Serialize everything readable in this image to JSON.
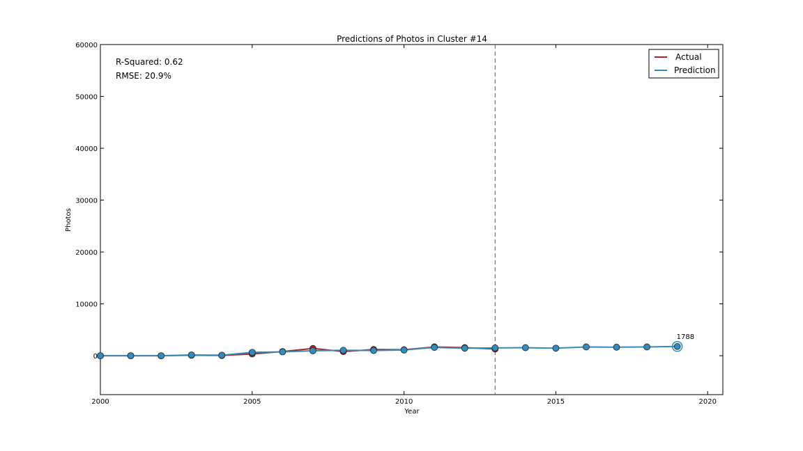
{
  "chart_data": {
    "type": "line",
    "title": "Predictions of Photos in Cluster #14",
    "xlabel": "Year",
    "ylabel": "Photos",
    "xlim": [
      2000,
      2020.5
    ],
    "ylim": [
      -7500,
      60000
    ],
    "xticks": [
      2000,
      2005,
      2010,
      2015,
      2020
    ],
    "yticks": [
      0,
      10000,
      20000,
      30000,
      40000,
      50000,
      60000
    ],
    "grid": false,
    "legend_position": "top-right",
    "cutoff_year": 2013,
    "annotations": [
      {
        "name": "r-squared",
        "text": "R-Squared: 0.62"
      },
      {
        "name": "rmse",
        "text": "RMSE: 20.9%"
      }
    ],
    "final_label": {
      "x": 2019,
      "y": 1788,
      "text": "1788"
    },
    "series": [
      {
        "name": "Actual",
        "color": "#b22222",
        "x": [
          2000,
          2001,
          2002,
          2003,
          2004,
          2005,
          2006,
          2007,
          2008,
          2009,
          2010,
          2011,
          2012,
          2013
        ],
        "values": [
          0,
          0,
          0,
          100,
          50,
          350,
          800,
          1400,
          800,
          1200,
          1150,
          1700,
          1550,
          1300
        ]
      },
      {
        "name": "Prediction",
        "color": "#348abd",
        "x": [
          2000,
          2001,
          2002,
          2003,
          2004,
          2005,
          2006,
          2007,
          2008,
          2009,
          2010,
          2011,
          2012,
          2013,
          2014,
          2015,
          2016,
          2017,
          2018,
          2019
        ],
        "values": [
          0,
          0,
          0,
          150,
          100,
          650,
          750,
          950,
          1050,
          1000,
          1100,
          1600,
          1450,
          1500,
          1550,
          1450,
          1700,
          1650,
          1700,
          1788
        ]
      }
    ]
  }
}
